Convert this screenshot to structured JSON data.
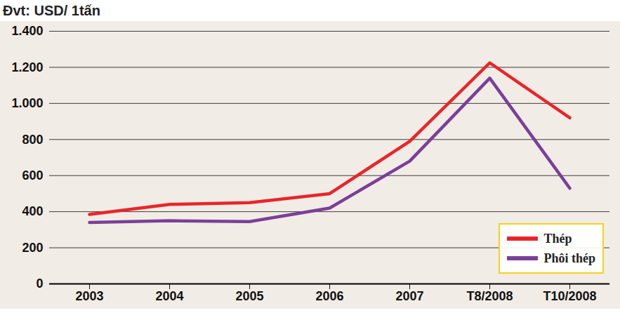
{
  "chart_data": {
    "type": "line",
    "title": "Đvt: USD/ 1tấn",
    "categories": [
      "2003",
      "2004",
      "2005",
      "2006",
      "2007",
      "T8/2008",
      "T10/2008"
    ],
    "series": [
      {
        "name": "Thép",
        "color": "#e8262b",
        "values": [
          385,
          440,
          450,
          500,
          790,
          1225,
          920
        ]
      },
      {
        "name": "Phôi thép",
        "color": "#7b3f98",
        "values": [
          340,
          350,
          345,
          420,
          680,
          1140,
          530
        ]
      }
    ],
    "ylim": [
      0,
      1400
    ],
    "yticks": [
      0,
      200,
      400,
      600,
      800,
      {
        "value": 1000,
        "label": "1.000"
      },
      {
        "value": 1200,
        "label": "1.200"
      },
      {
        "value": 1400,
        "label": "1.400"
      }
    ],
    "grid": true,
    "legend": "bottom-right"
  }
}
